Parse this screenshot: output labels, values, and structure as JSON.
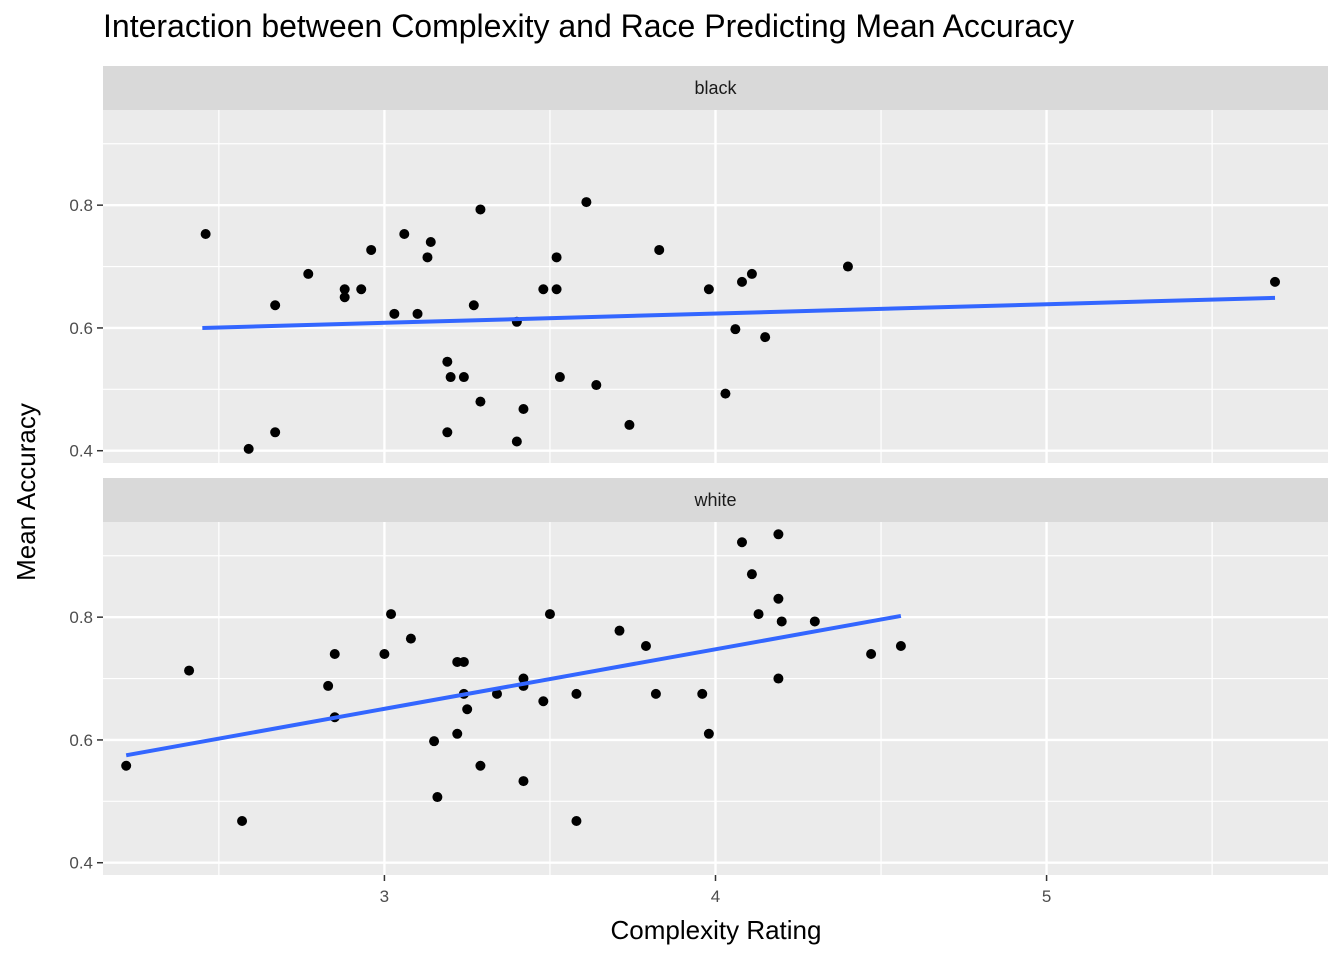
{
  "chart_data": {
    "type": "scatter",
    "title": "Interaction between Complexity and Race Predicting Mean Accuracy",
    "xlabel": "Complexity Rating",
    "ylabel": "Mean Accuracy",
    "xlim": [
      2.15,
      5.85
    ],
    "ylim": [
      0.38,
      0.955
    ],
    "x_ticks": [
      3,
      4,
      5
    ],
    "y_ticks": [
      0.4,
      0.6,
      0.8
    ],
    "grid": true,
    "facets": [
      {
        "label": "black",
        "points": [
          [
            2.46,
            0.753
          ],
          [
            2.59,
            0.403
          ],
          [
            2.67,
            0.637
          ],
          [
            2.67,
            0.43
          ],
          [
            2.77,
            0.688
          ],
          [
            2.88,
            0.663
          ],
          [
            2.88,
            0.65
          ],
          [
            2.93,
            0.663
          ],
          [
            2.96,
            0.727
          ],
          [
            3.03,
            0.623
          ],
          [
            3.06,
            0.753
          ],
          [
            3.1,
            0.623
          ],
          [
            3.13,
            0.715
          ],
          [
            3.14,
            0.74
          ],
          [
            3.19,
            0.545
          ],
          [
            3.19,
            0.43
          ],
          [
            3.2,
            0.52
          ],
          [
            3.24,
            0.52
          ],
          [
            3.27,
            0.637
          ],
          [
            3.29,
            0.793
          ],
          [
            3.29,
            0.48
          ],
          [
            3.4,
            0.61
          ],
          [
            3.4,
            0.415
          ],
          [
            3.42,
            0.468
          ],
          [
            3.48,
            0.663
          ],
          [
            3.52,
            0.663
          ],
          [
            3.52,
            0.715
          ],
          [
            3.53,
            0.52
          ],
          [
            3.61,
            0.805
          ],
          [
            3.64,
            0.507
          ],
          [
            3.74,
            0.442
          ],
          [
            3.83,
            0.727
          ],
          [
            3.98,
            0.663
          ],
          [
            4.03,
            0.493
          ],
          [
            4.06,
            0.598
          ],
          [
            4.08,
            0.675
          ],
          [
            4.11,
            0.688
          ],
          [
            4.15,
            0.585
          ],
          [
            4.4,
            0.7
          ],
          [
            5.69,
            0.675
          ]
        ],
        "fit": {
          "x": [
            2.45,
            5.69
          ],
          "y": [
            0.6,
            0.649
          ]
        }
      },
      {
        "label": "white",
        "points": [
          [
            2.22,
            0.558
          ],
          [
            2.41,
            0.713
          ],
          [
            2.57,
            0.468
          ],
          [
            2.83,
            0.688
          ],
          [
            2.85,
            0.74
          ],
          [
            2.85,
            0.637
          ],
          [
            3.0,
            0.74
          ],
          [
            3.02,
            0.805
          ],
          [
            3.08,
            0.765
          ],
          [
            3.15,
            0.598
          ],
          [
            3.16,
            0.507
          ],
          [
            3.22,
            0.727
          ],
          [
            3.22,
            0.61
          ],
          [
            3.24,
            0.727
          ],
          [
            3.24,
            0.675
          ],
          [
            3.25,
            0.65
          ],
          [
            3.29,
            0.558
          ],
          [
            3.34,
            0.675
          ],
          [
            3.42,
            0.7
          ],
          [
            3.42,
            0.688
          ],
          [
            3.42,
            0.533
          ],
          [
            3.48,
            0.663
          ],
          [
            3.5,
            0.805
          ],
          [
            3.58,
            0.675
          ],
          [
            3.58,
            0.468
          ],
          [
            3.71,
            0.778
          ],
          [
            3.79,
            0.753
          ],
          [
            3.82,
            0.675
          ],
          [
            3.96,
            0.675
          ],
          [
            3.98,
            0.61
          ],
          [
            4.08,
            0.922
          ],
          [
            4.11,
            0.87
          ],
          [
            4.13,
            0.805
          ],
          [
            4.19,
            0.935
          ],
          [
            4.19,
            0.83
          ],
          [
            4.19,
            0.7
          ],
          [
            4.2,
            0.793
          ],
          [
            4.3,
            0.793
          ],
          [
            4.47,
            0.74
          ],
          [
            4.56,
            0.753
          ]
        ],
        "fit": {
          "x": [
            2.22,
            4.56
          ],
          "y": [
            0.575,
            0.802
          ]
        }
      }
    ],
    "colors": {
      "panel_bg": "#ebebeb",
      "strip_bg": "#d9d9d9",
      "grid": "#ffffff",
      "points": "#000000",
      "fit_line": "#3366ff"
    }
  }
}
